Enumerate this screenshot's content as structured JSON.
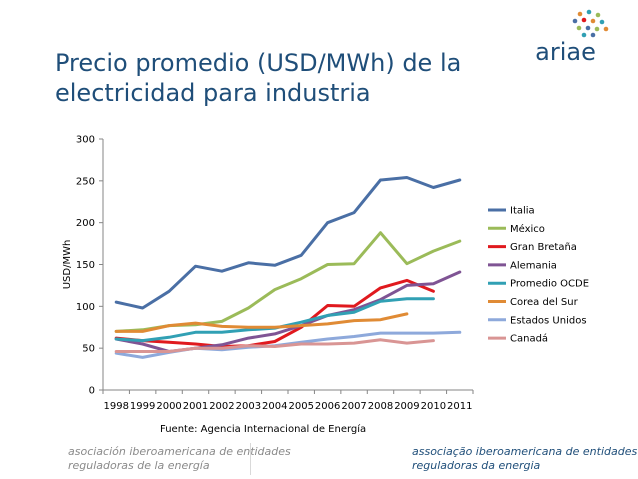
{
  "header": {
    "title_line1": "Precio promedio (USD/MWh) de la",
    "title_line2": "electricidad para industria",
    "logo_text": "ariae"
  },
  "footer": {
    "left_line1": "asociación iberoamericana de entidades",
    "left_line2": "reguladoras de la energía",
    "right_line1": "associação iberoamericana de entidades",
    "right_line2": "reguladoras da energia"
  },
  "chart_data": {
    "type": "line",
    "title": "",
    "xlabel": "",
    "ylabel": "USD/MWh",
    "ylim": [
      0,
      300
    ],
    "yticks": [
      0,
      50,
      100,
      150,
      200,
      250,
      300
    ],
    "grid": false,
    "legend_position": "right",
    "source": "Fuente: Agencia Internacional de Energía",
    "x": [
      "1998",
      "1999",
      "2000",
      "2001",
      "2002",
      "2003",
      "2004",
      "2005",
      "2006",
      "2007",
      "2008",
      "2009",
      "2010",
      "2011"
    ],
    "series": [
      {
        "name": "Italia",
        "color": "#4a6fa5",
        "values": [
          105,
          98,
          118,
          148,
          142,
          152,
          149,
          161,
          200,
          212,
          251,
          254,
          242,
          251
        ]
      },
      {
        "name": "México",
        "color": "#9bbb59",
        "values": [
          70,
          72,
          77,
          78,
          82,
          98,
          120,
          133,
          150,
          151,
          188,
          151,
          166,
          178
        ]
      },
      {
        "name": "Gran Bretaña",
        "color": "#e0191e",
        "values": [
          62,
          59,
          57,
          55,
          52,
          53,
          58,
          75,
          101,
          100,
          122,
          131,
          118,
          null
        ]
      },
      {
        "name": "Alemania",
        "color": "#7f5494",
        "values": [
          61,
          55,
          46,
          50,
          54,
          62,
          67,
          77,
          89,
          96,
          108,
          125,
          127,
          141
        ]
      },
      {
        "name": "Promedio OCDE",
        "color": "#31a0b4",
        "values": [
          61,
          59,
          63,
          69,
          69,
          72,
          74,
          81,
          89,
          93,
          106,
          109,
          109,
          null
        ]
      },
      {
        "name": "Corea del Sur",
        "color": "#e08b35",
        "values": [
          70,
          70,
          77,
          80,
          76,
          75,
          75,
          77,
          79,
          83,
          84,
          91,
          null,
          null
        ]
      },
      {
        "name": "Estados Unidos",
        "color": "#8ea9db",
        "values": [
          44,
          39,
          45,
          50,
          48,
          51,
          53,
          57,
          61,
          64,
          68,
          68,
          68,
          69
        ]
      },
      {
        "name": "Canadá",
        "color": "#d99594",
        "values": [
          46,
          46,
          46,
          50,
          50,
          53,
          52,
          55,
          55,
          56,
          60,
          56,
          59,
          null
        ]
      }
    ]
  }
}
